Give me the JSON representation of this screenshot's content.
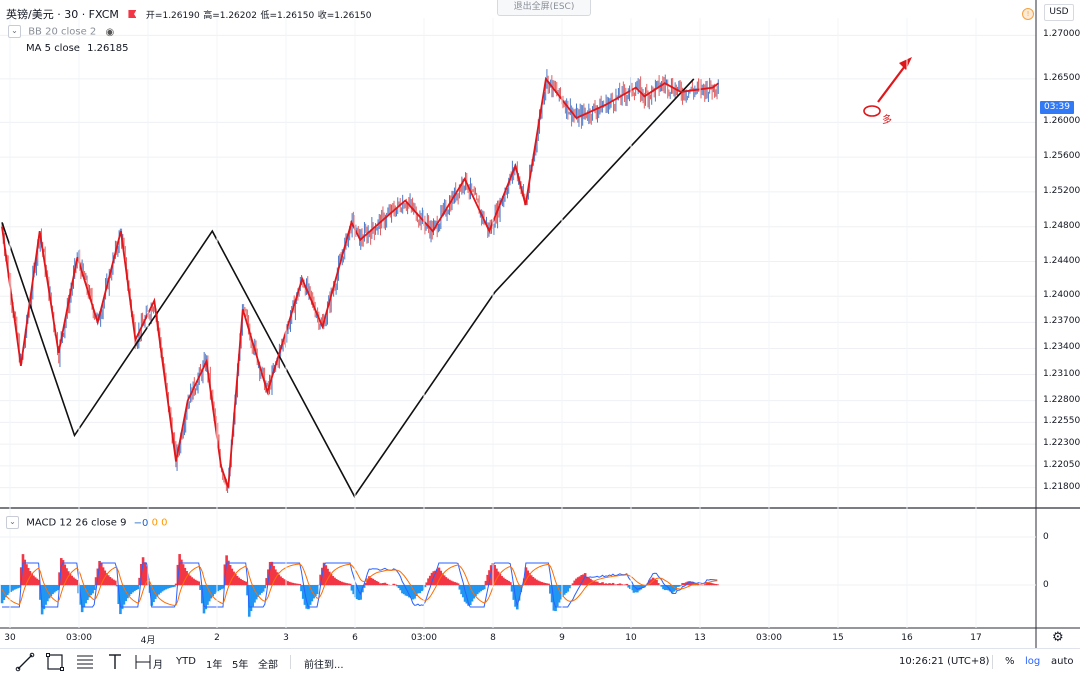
{
  "header": {
    "symbol": "英镑/美元 · 30 · FXCM",
    "open_label": "开=1.26190",
    "high_label": "高=1.26202",
    "low_label": "低=1.26150",
    "close_label": "收=1.26150",
    "exit_fullscreen": "退出全屏(ESC)",
    "currency": "USD"
  },
  "indicators": {
    "bb": "BB 20 close 2",
    "ma_label": "MA 5 close",
    "ma_value": "1.26185",
    "macd_label": "MACD 12 26 close 9",
    "macd_v1": "−0",
    "macd_v2": "0",
    "macd_v3": "0"
  },
  "current_price_tag": "03:39",
  "annotation_text": "多",
  "toolbar": {
    "tab_ytd": "YTD",
    "tab_1y": "1年",
    "tab_5y": "5年",
    "tab_all": "全部",
    "goto": "前往到...",
    "clock": "10:26:21 (UTC+8)",
    "pct": "%",
    "log": "log",
    "auto": "auto",
    "partial_label": "月"
  },
  "colors": {
    "up": "#26a69a",
    "bar_blue": "#4a78c8",
    "bar_red": "#e26060",
    "zigzag_red": "#e0161a",
    "zigzag_black": "#111111",
    "macd_red": "#f23645",
    "macd_blue": "#2196f3",
    "macd_line": "#2962ff",
    "signal_line": "#ff6d00",
    "price_tag_bg": "#3179f5"
  },
  "chart_data": {
    "type": "line",
    "title": "英镑/美元 · 30 · FXCM",
    "y_scale": "price",
    "ylim": [
      1.216,
      1.272
    ],
    "y_ticks": [
      1.27,
      1.265,
      1.26,
      1.256,
      1.252,
      1.248,
      1.244,
      1.24,
      1.237,
      1.234,
      1.231,
      1.228,
      1.2255,
      1.223,
      1.2205,
      1.218
    ],
    "x_tick_labels": [
      "30",
      "03:00",
      "4月",
      "2",
      "3",
      "6",
      "03:00",
      "8",
      "9",
      "10",
      "13",
      "03:00",
      "15",
      "16",
      "17"
    ],
    "series": [
      {
        "name": "zigzag-red",
        "x": [
          0,
          1.3,
          2.6,
          3.9,
          5.2,
          6.6,
          8.2,
          9.2,
          10.5,
          12.0,
          12.8,
          14.1,
          15.1,
          15.6,
          16.6,
          18.3,
          20.7,
          22.1,
          24.1,
          24.7,
          27.8,
          29.7,
          31.9,
          33.6,
          35.4,
          36.1,
          37.5,
          39.6,
          41.6,
          43.7,
          44.3,
          45.7,
          46.8,
          49.0,
          49.4
        ],
        "values": [
          1.248,
          1.232,
          1.2475,
          1.2335,
          1.2445,
          1.237,
          1.2475,
          1.235,
          1.2395,
          1.221,
          1.228,
          1.2325,
          1.2205,
          1.218,
          1.2385,
          1.229,
          1.242,
          1.2365,
          1.2485,
          1.2465,
          1.251,
          1.2475,
          1.2535,
          1.2475,
          1.255,
          1.2505,
          1.265,
          1.2605,
          1.262,
          1.264,
          1.263,
          1.2645,
          1.2635,
          1.264,
          1.2645
        ]
      },
      {
        "name": "zigzag-black",
        "x": [
          0,
          5.0,
          14.5,
          24.3,
          34.0,
          47.7
        ],
        "values": [
          1.2485,
          1.224,
          1.2475,
          1.217,
          1.2405,
          1.265
        ]
      }
    ],
    "macd": {
      "label": "MACD 12 26 close 9",
      "zero_line": true,
      "tick_labels": [
        "0",
        "0"
      ]
    }
  }
}
